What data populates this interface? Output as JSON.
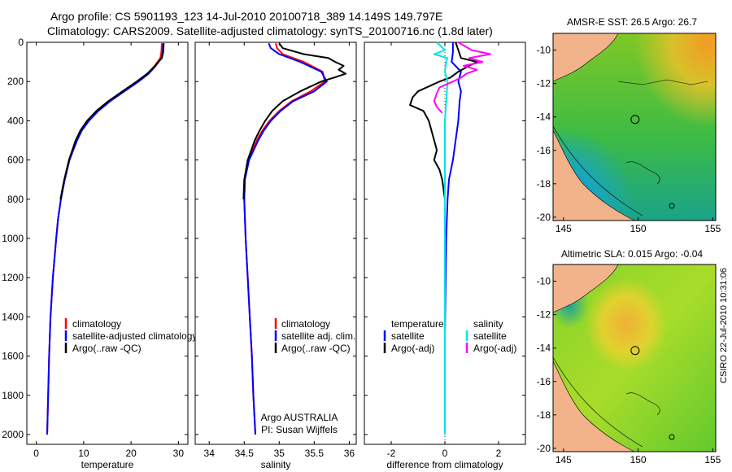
{
  "header": {
    "line1": "Argo profile: CS 5901193_123 14-Jul-2010 20100718_389 14.149S 149.797E",
    "line2": "Climatology: CARS2009. Satellite-adjusted climatology: synTS_20100716.nc (1.8d later)"
  },
  "stamp": "CSIRO 22-Jul-2010 10:31:06",
  "colors": {
    "climatology": "#ff0000",
    "satellite": "#0000ff",
    "argo": "#000000",
    "sal_satellite": "#00e5e5",
    "sal_argo": "#ff00ff",
    "land": "#f2b38a"
  },
  "chart_data": [
    {
      "type": "line",
      "title": "",
      "xlabel": "temperature",
      "ylabel": "",
      "xlim": [
        -2,
        32
      ],
      "ylim": [
        2050,
        0
      ],
      "xticks": [
        0,
        10,
        20,
        30
      ],
      "yticks": [
        0,
        200,
        400,
        600,
        800,
        1000,
        1200,
        1400,
        1600,
        1800,
        2000
      ],
      "legend": [
        "climatology",
        "satellite-adjusted climatology",
        "Argo(..raw -QC)"
      ],
      "series": [
        {
          "name": "climatology",
          "color": "#ff0000",
          "depth": [
            5,
            50,
            80,
            120,
            160,
            200,
            250,
            300,
            350,
            400,
            450,
            500,
            600,
            700,
            800,
            900,
            1000,
            1200,
            1400,
            1600,
            1800,
            2000
          ],
          "value": [
            26.5,
            26.4,
            26.2,
            25.0,
            23.5,
            21.5,
            18.5,
            15.5,
            13.0,
            11.0,
            9.5,
            8.5,
            7.0,
            6.0,
            5.2,
            4.6,
            4.2,
            3.5,
            3.0,
            2.7,
            2.5,
            2.3
          ]
        },
        {
          "name": "satellite-adjusted climatology",
          "color": "#0000ff",
          "depth": [
            5,
            50,
            80,
            120,
            160,
            200,
            250,
            300,
            350,
            400,
            450,
            500,
            600,
            700,
            800,
            900,
            1000,
            1200,
            1400,
            1600,
            1800,
            2000
          ],
          "value": [
            26.8,
            26.7,
            26.4,
            25.2,
            23.7,
            21.6,
            18.6,
            15.6,
            13.1,
            11.1,
            9.6,
            8.6,
            7.0,
            6.0,
            5.2,
            4.6,
            4.2,
            3.5,
            3.0,
            2.7,
            2.5,
            2.3
          ]
        },
        {
          "name": "Argo(..raw -QC)",
          "color": "#000000",
          "depth": [
            5,
            50,
            80,
            120,
            160,
            200,
            250,
            300,
            350,
            400,
            450,
            500,
            600,
            700,
            800
          ],
          "value": [
            26.9,
            26.8,
            26.5,
            25.1,
            23.4,
            21.2,
            18.2,
            15.2,
            12.7,
            10.7,
            9.3,
            8.3,
            6.9,
            5.9,
            5.1
          ]
        }
      ]
    },
    {
      "type": "line",
      "title": "",
      "xlabel": "salinity",
      "ylabel": "",
      "xlim": [
        33.8,
        36.1
      ],
      "ylim": [
        2050,
        0
      ],
      "xticks": [
        34,
        34.5,
        35,
        35.5,
        36
      ],
      "legend": [
        "climatology",
        "satellite adj. clim.",
        "Argo(..raw -QC)"
      ],
      "annotation": [
        "Argo AUSTRALIA",
        "PI: Susan Wijffels"
      ],
      "series": [
        {
          "name": "climatology",
          "color": "#ff0000",
          "depth": [
            5,
            30,
            60,
            100,
            150,
            200,
            250,
            300,
            350,
            400,
            450,
            500,
            600,
            700,
            800,
            1000,
            1200,
            1400,
            1600,
            1800,
            2000
          ],
          "value": [
            34.95,
            34.97,
            35.05,
            35.35,
            35.62,
            35.65,
            35.45,
            35.18,
            35.0,
            34.86,
            34.76,
            34.68,
            34.56,
            34.51,
            34.5,
            34.52,
            34.55,
            34.58,
            34.61,
            34.63,
            34.66
          ]
        },
        {
          "name": "satellite adj. clim.",
          "color": "#0000ff",
          "depth": [
            5,
            30,
            60,
            100,
            150,
            200,
            250,
            300,
            350,
            400,
            450,
            500,
            600,
            700,
            800,
            1000,
            1200,
            1400,
            1600,
            1800,
            2000
          ],
          "value": [
            34.85,
            34.88,
            35.0,
            35.3,
            35.6,
            35.68,
            35.5,
            35.2,
            35.02,
            34.88,
            34.78,
            34.7,
            34.57,
            34.51,
            34.5,
            34.52,
            34.55,
            34.58,
            34.61,
            34.63,
            34.66
          ]
        },
        {
          "name": "Argo(..raw -QC)",
          "color": "#000000",
          "depth": [
            5,
            30,
            60,
            80,
            100,
            120,
            140,
            160,
            180,
            200,
            250,
            300,
            350,
            400,
            450,
            500,
            600,
            700,
            800
          ],
          "value": [
            35.0,
            35.05,
            35.35,
            35.7,
            35.8,
            35.92,
            35.85,
            35.95,
            35.78,
            35.6,
            35.3,
            35.05,
            34.9,
            34.8,
            34.72,
            34.65,
            34.55,
            34.5,
            34.49
          ]
        }
      ]
    },
    {
      "type": "line",
      "title": "",
      "xlabel": "difference from climatology",
      "ylabel": "",
      "xlim": [
        -3,
        3
      ],
      "ylim": [
        2050,
        0
      ],
      "xticks": [
        -2,
        0,
        2
      ],
      "legend_temperature": [
        "temperature",
        "satellite",
        "Argo(-adj)"
      ],
      "legend_salinity": [
        "salinity",
        "satellite",
        "Argo(-adj)"
      ],
      "series": [
        {
          "name": "temperature satellite",
          "color": "#0000ff",
          "depth": [
            0,
            50,
            100,
            150,
            200,
            250,
            300,
            400,
            500,
            600,
            700,
            800,
            1000,
            1500,
            2000
          ],
          "value": [
            0.3,
            0.3,
            0.25,
            0.6,
            0.5,
            0.6,
            0.55,
            0.5,
            0.4,
            0.3,
            0.15,
            0.1,
            0.05,
            0.0,
            0.0
          ]
        },
        {
          "name": "temperature Argo(-adj)",
          "color": "#000000",
          "depth": [
            0,
            40,
            80,
            100,
            120,
            150,
            180,
            200,
            250,
            280,
            320,
            350,
            400,
            450,
            500,
            550,
            600,
            650,
            700,
            750,
            800
          ],
          "value": [
            0.4,
            0.5,
            0.6,
            1.2,
            0.9,
            0.5,
            0.2,
            -0.2,
            -1.0,
            -1.2,
            -1.3,
            -0.8,
            -0.6,
            -0.5,
            -0.4,
            -0.3,
            -0.4,
            -0.2,
            -0.1,
            -0.05,
            0.0
          ]
        },
        {
          "name": "salinity satellite",
          "color": "#00e5e5",
          "depth": [
            0,
            40,
            60,
            80,
            100,
            150,
            200,
            300,
            400,
            600,
            800,
            1200,
            2000
          ],
          "value": [
            -0.3,
            0.0,
            -0.4,
            0.1,
            0.05,
            0.0,
            0.1,
            0.05,
            0.0,
            0.0,
            0.0,
            0.0,
            0.0
          ]
        },
        {
          "name": "salinity Argo(-adj)",
          "color": "#ff00ff",
          "depth": [
            0,
            40,
            60,
            80,
            100,
            120,
            140,
            160,
            180,
            200,
            230,
            260,
            300,
            330,
            360
          ],
          "value": [
            0.5,
            1.0,
            1.7,
            0.9,
            1.4,
            0.7,
            1.2,
            0.8,
            0.6,
            0.3,
            -0.2,
            -0.3,
            -0.4,
            -0.3,
            -0.1
          ]
        }
      ]
    }
  ],
  "maps": [
    {
      "name": "sst",
      "title": "AMSR-E SST: 26.5 Argo: 26.7",
      "xticks": [
        145,
        150,
        155
      ],
      "yticks": [
        -10,
        -12,
        -14,
        -16,
        -18,
        -20
      ],
      "float_lon": 149.797,
      "float_lat": -14.149
    },
    {
      "name": "sla",
      "title": "Altimetric SLA: 0.015 Argo: -0.04",
      "xticks": [
        145,
        150,
        155
      ],
      "yticks": [
        -10,
        -12,
        -14,
        -16,
        -18,
        -20
      ],
      "float_lon": 149.797,
      "float_lat": -14.149
    }
  ]
}
